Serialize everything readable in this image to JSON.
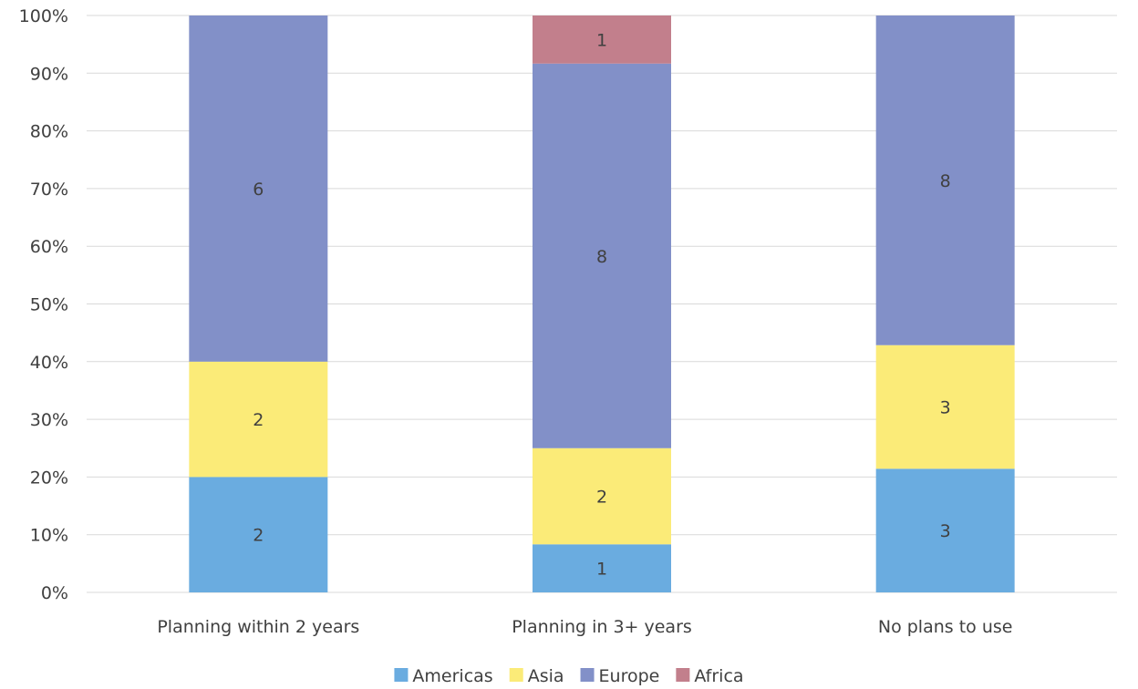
{
  "chart_data": {
    "type": "bar",
    "stacked": true,
    "normalized": true,
    "categories": [
      "Planning within 2 years",
      "Planning in 3+ years",
      "No plans to use"
    ],
    "series": [
      {
        "name": "Americas",
        "color": "#6aace0",
        "values": [
          2,
          1,
          3
        ]
      },
      {
        "name": "Asia",
        "color": "#fbeb78",
        "values": [
          2,
          2,
          3
        ]
      },
      {
        "name": "Europe",
        "color": "#8290c8",
        "values": [
          6,
          8,
          8
        ]
      },
      {
        "name": "Africa",
        "color": "#c27f8c",
        "values": [
          0,
          1,
          0
        ]
      }
    ],
    "y_ticks": [
      "0%",
      "10%",
      "20%",
      "30%",
      "40%",
      "50%",
      "60%",
      "70%",
      "80%",
      "90%",
      "100%"
    ],
    "ylim": [
      0,
      100
    ],
    "grid": true,
    "legend_position": "bottom",
    "title": "",
    "xlabel": "",
    "ylabel": ""
  }
}
